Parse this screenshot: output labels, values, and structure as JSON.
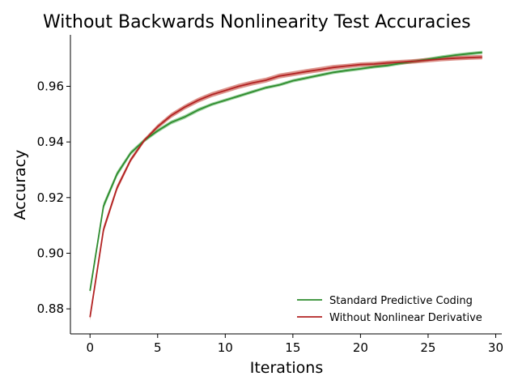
{
  "chart_data": {
    "type": "line",
    "title": "Without Backwards Nonlinearity Test Accuracies",
    "xlabel": "Iterations",
    "ylabel": "Accuracy",
    "xlim": [
      -1.45,
      30.45
    ],
    "ylim": [
      0.871,
      0.9785
    ],
    "xticks": [
      0,
      5,
      10,
      15,
      20,
      25,
      30
    ],
    "xtick_labels": [
      "0",
      "5",
      "10",
      "15",
      "20",
      "25",
      "30"
    ],
    "yticks": [
      0.88,
      0.9,
      0.92,
      0.94,
      0.96
    ],
    "ytick_labels": [
      "0.88",
      "0.90",
      "0.92",
      "0.94",
      "0.96"
    ],
    "grid": false,
    "legend_position": "lower-right",
    "x": [
      0,
      1,
      2,
      3,
      4,
      5,
      6,
      7,
      8,
      9,
      10,
      11,
      12,
      13,
      14,
      15,
      16,
      17,
      18,
      19,
      20,
      21,
      22,
      23,
      24,
      25,
      26,
      27,
      28,
      29
    ],
    "series": [
      {
        "name": "Standard Predictive Coding",
        "color": "#2e8b2e",
        "band_color": "#4caf50",
        "values": [
          0.8865,
          0.917,
          0.9285,
          0.936,
          0.9405,
          0.944,
          0.947,
          0.949,
          0.9515,
          0.9535,
          0.955,
          0.9565,
          0.958,
          0.9595,
          0.9605,
          0.962,
          0.963,
          0.964,
          0.965,
          0.9657,
          0.9663,
          0.967,
          0.9675,
          0.9683,
          0.969,
          0.9697,
          0.9705,
          0.9712,
          0.9717,
          0.9722
        ],
        "band": [
          0.0012,
          0.0012,
          0.001,
          0.0008,
          0.0007,
          0.0007,
          0.0007,
          0.0007,
          0.0007,
          0.0006,
          0.0006,
          0.0006,
          0.0006,
          0.0006,
          0.0006,
          0.0006,
          0.0006,
          0.0006,
          0.0006,
          0.0006,
          0.0006,
          0.0006,
          0.0006,
          0.0006,
          0.0006,
          0.0006,
          0.0006,
          0.0006,
          0.0006,
          0.0006
        ]
      },
      {
        "name": "Without Nonlinear Derivative",
        "color": "#b22222",
        "band_color": "#c0392b",
        "values": [
          0.877,
          0.9085,
          0.9235,
          0.9335,
          0.9405,
          0.9455,
          0.9495,
          0.9525,
          0.955,
          0.957,
          0.9585,
          0.96,
          0.9612,
          0.9622,
          0.9637,
          0.9645,
          0.9653,
          0.966,
          0.9668,
          0.9673,
          0.9678,
          0.968,
          0.9684,
          0.9687,
          0.969,
          0.9694,
          0.9698,
          0.9701,
          0.9703,
          0.9705
        ],
        "band": [
          0.0012,
          0.0012,
          0.001,
          0.0008,
          0.0007,
          0.0008,
          0.0009,
          0.0009,
          0.0009,
          0.0009,
          0.0009,
          0.0009,
          0.0009,
          0.0009,
          0.0009,
          0.0009,
          0.0009,
          0.0009,
          0.0009,
          0.0008,
          0.0008,
          0.0008,
          0.0008,
          0.0008,
          0.0008,
          0.0008,
          0.0008,
          0.0008,
          0.0008,
          0.0008
        ]
      }
    ]
  }
}
